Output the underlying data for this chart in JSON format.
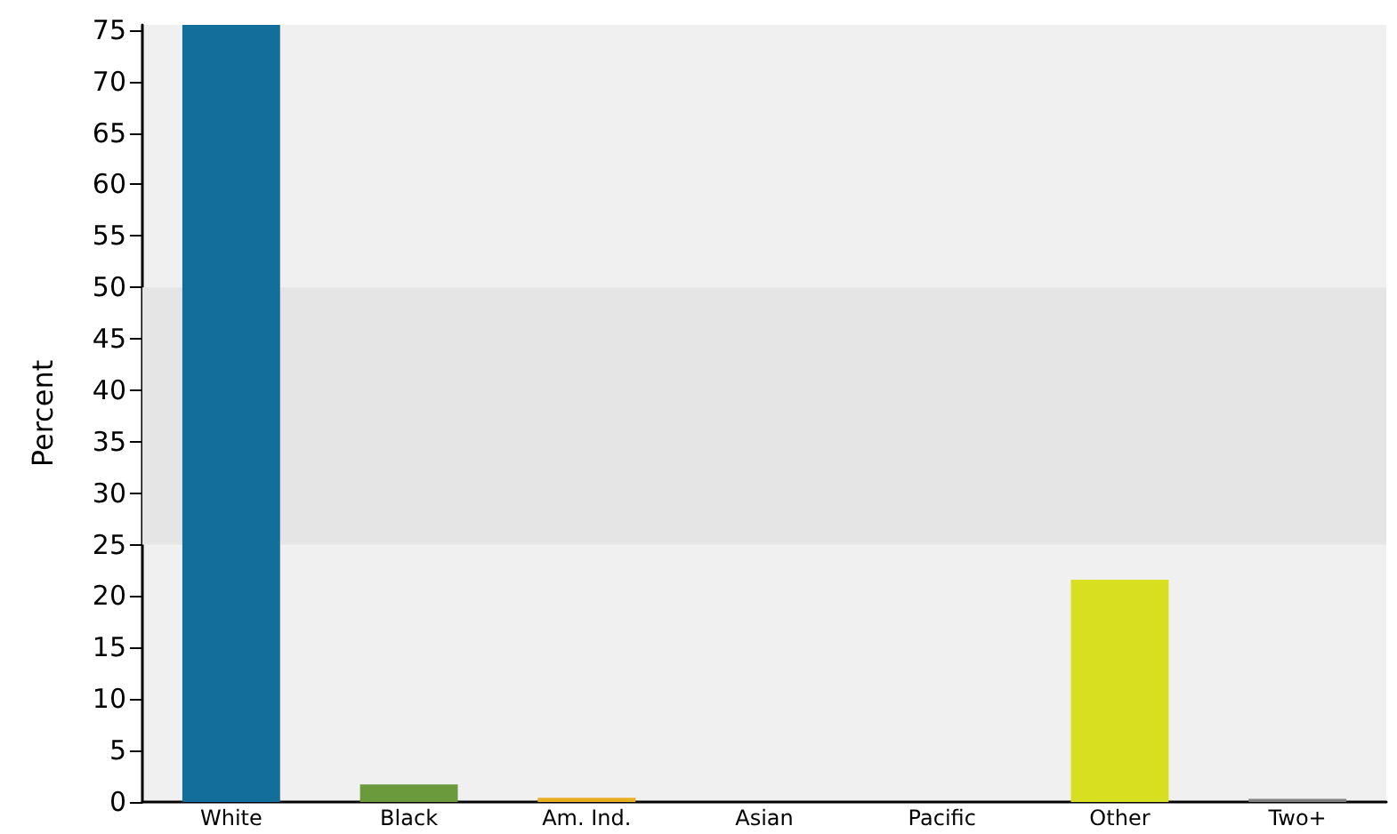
{
  "chart_data": {
    "type": "bar",
    "ylabel": "Percent",
    "categories": [
      "White",
      "Black",
      "Am. Ind.",
      "Asian",
      "Pacific",
      "Other",
      "Two+"
    ],
    "values": [
      75.5,
      1.7,
      0.4,
      0,
      0,
      21.6,
      0.3
    ],
    "colors": [
      "#136e9c",
      "#6a9a3c",
      "#e8b020",
      "#808080",
      "#808080",
      "#d8de20",
      "#808080"
    ],
    "ylim": [
      0,
      75.5
    ],
    "yticks": [
      0,
      5,
      10,
      15,
      20,
      25,
      30,
      35,
      40,
      45,
      50,
      55,
      60,
      65,
      70,
      75
    ],
    "bands": [
      {
        "axis": "y",
        "from": 25,
        "to": 50,
        "color": "#e5e5e5"
      }
    ],
    "grid": false
  }
}
